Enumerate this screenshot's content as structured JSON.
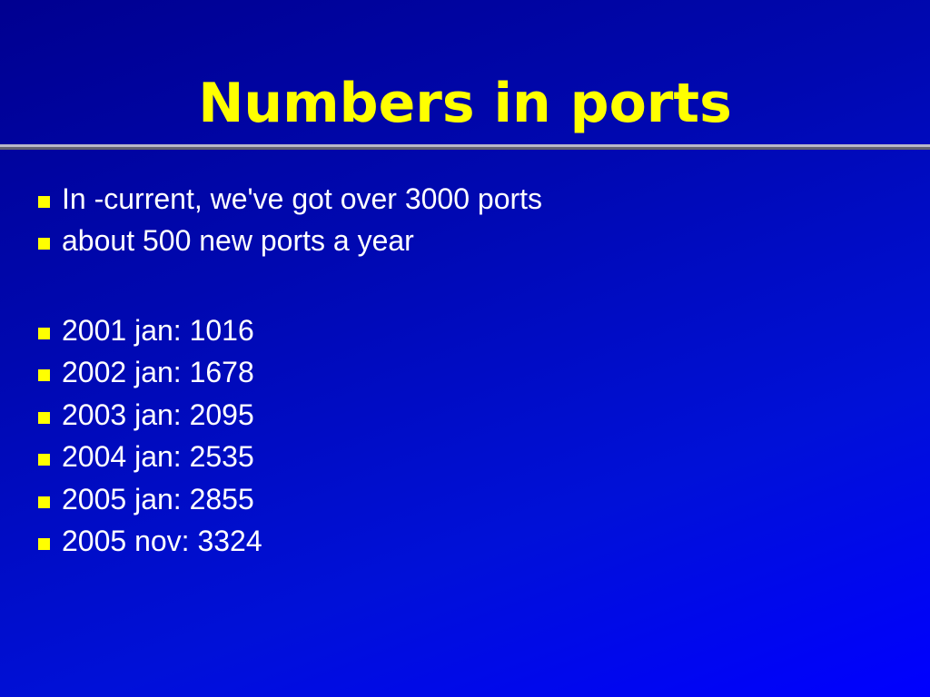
{
  "slide": {
    "title": "Numbers in ports",
    "bullets_intro": [
      "In -current, we've got over 3000 ports",
      "about 500 new ports a year"
    ],
    "bullets_counts": [
      "2001 jan: 1016",
      "2002 jan: 1678",
      "2003 jan: 2095",
      "2004 jan: 2535",
      "2005 jan: 2855",
      "2005 nov: 3324"
    ],
    "colors": {
      "title": "#ffff00",
      "bullet": "#ffff00",
      "text": "#ffffff",
      "background_start": "#000090",
      "background_end": "#0000ff"
    }
  }
}
